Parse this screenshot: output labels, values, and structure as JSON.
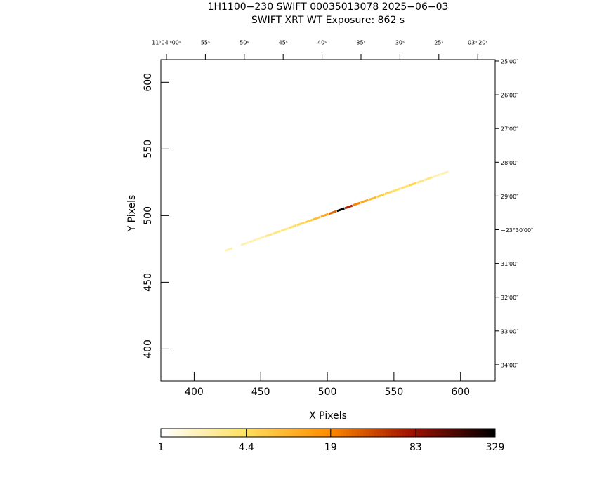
{
  "chart_data": {
    "type": "image",
    "title": "1H1100−230 SWIFT 00035013078 2025−06−03",
    "subtitle": "SWIFT XRT WT Exposure:        862 s",
    "x_label": "X Pixels",
    "y_label": "Y Pixels",
    "xlim": [
      375,
      626
    ],
    "ylim": [
      376,
      617
    ],
    "xticks": [
      400,
      450,
      500,
      550,
      600
    ],
    "yticks": [
      400,
      450,
      500,
      550,
      600
    ],
    "ra_labels": [
      "11ʰ04ᵐ00ˢ",
      "55ˢ",
      "50ˢ",
      "45ˢ",
      "40ˢ",
      "35ˢ",
      "30ˢ",
      "25ˢ",
      "03ᵐ20ˢ"
    ],
    "dec_labels": [
      "25′00″",
      "26′00″",
      "27′00″",
      "28′00″",
      "29′00″",
      "−23°30′00″",
      "31′00″",
      "32′00″",
      "33′00″",
      "34′00″"
    ],
    "colormap": [
      "#ffffff",
      "#ffe060",
      "#ff8c00",
      "#a01000",
      "#000000"
    ],
    "color_scale": "log",
    "colorbar_lim": [
      1,
      329
    ],
    "colorbar_ticks": [
      1,
      4.4,
      19,
      83,
      329
    ],
    "pixels": {
      "x": [
        420,
        426,
        432,
        438,
        444,
        450,
        456,
        462,
        468,
        474,
        480,
        486,
        492,
        498,
        504,
        510,
        516,
        522,
        528,
        534,
        540,
        546,
        552,
        558,
        564,
        570,
        576,
        582,
        588,
        594,
        600
      ],
      "y": [
        472.5,
        474.6,
        476.8,
        478.9,
        481.0,
        483.2,
        485.3,
        487.4,
        489.5,
        491.7,
        493.8,
        495.9,
        498.0,
        500.2,
        502.3,
        504.4,
        506.5,
        508.7,
        510.8,
        512.9,
        515.0,
        517.2,
        519.3,
        521.4,
        523.5,
        525.6,
        527.8,
        529.9,
        532.0,
        534.2,
        536.3
      ],
      "values": [
        1,
        2,
        1,
        2,
        2,
        2,
        3,
        3,
        3,
        4,
        5,
        6,
        8,
        12,
        30,
        329,
        60,
        20,
        12,
        8,
        6,
        5,
        4,
        4,
        5,
        3,
        3,
        2,
        2,
        1,
        1
      ]
    }
  }
}
